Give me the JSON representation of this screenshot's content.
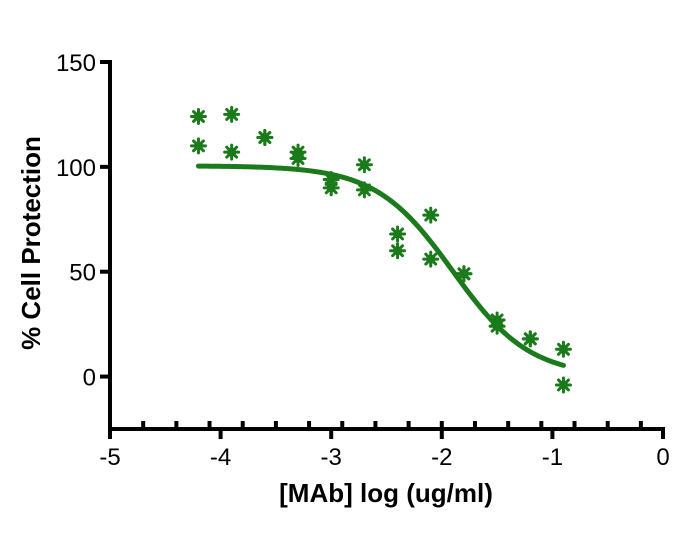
{
  "chart_data": {
    "type": "scatter",
    "xlabel": "[MAb] log (ug/ml)",
    "ylabel": "% Cell Protection",
    "xlim": [
      -5,
      0
    ],
    "ylim": [
      -25,
      150
    ],
    "x_ticks": [
      -5,
      -4,
      -3,
      -2,
      -1,
      0
    ],
    "x_minor_step": 0.3,
    "y_ticks": [
      0,
      50,
      100,
      150
    ],
    "color": "#1b7a1b",
    "points": [
      {
        "x": -4.2,
        "y": 124
      },
      {
        "x": -4.2,
        "y": 110
      },
      {
        "x": -3.9,
        "y": 125
      },
      {
        "x": -3.9,
        "y": 107
      },
      {
        "x": -3.6,
        "y": 114
      },
      {
        "x": -3.6,
        "y": 114
      },
      {
        "x": -3.3,
        "y": 107
      },
      {
        "x": -3.3,
        "y": 104
      },
      {
        "x": -3.0,
        "y": 94
      },
      {
        "x": -3.0,
        "y": 90
      },
      {
        "x": -2.7,
        "y": 101
      },
      {
        "x": -2.7,
        "y": 89
      },
      {
        "x": -2.4,
        "y": 68
      },
      {
        "x": -2.4,
        "y": 60
      },
      {
        "x": -2.1,
        "y": 77
      },
      {
        "x": -2.1,
        "y": 56
      },
      {
        "x": -1.8,
        "y": 49
      },
      {
        "x": -1.8,
        "y": 49
      },
      {
        "x": -1.5,
        "y": 27
      },
      {
        "x": -1.5,
        "y": 24
      },
      {
        "x": -1.2,
        "y": 18
      },
      {
        "x": -1.2,
        "y": 18
      },
      {
        "x": -0.9,
        "y": 13
      },
      {
        "x": -0.9,
        "y": -4
      }
    ],
    "fit_curve": {
      "type": "four-parameter logistic",
      "top": 100.5,
      "bottom": 0,
      "log_ic50": -1.9,
      "hill_slope": -1.25,
      "x_range": [
        -4.2,
        -0.9
      ]
    }
  }
}
